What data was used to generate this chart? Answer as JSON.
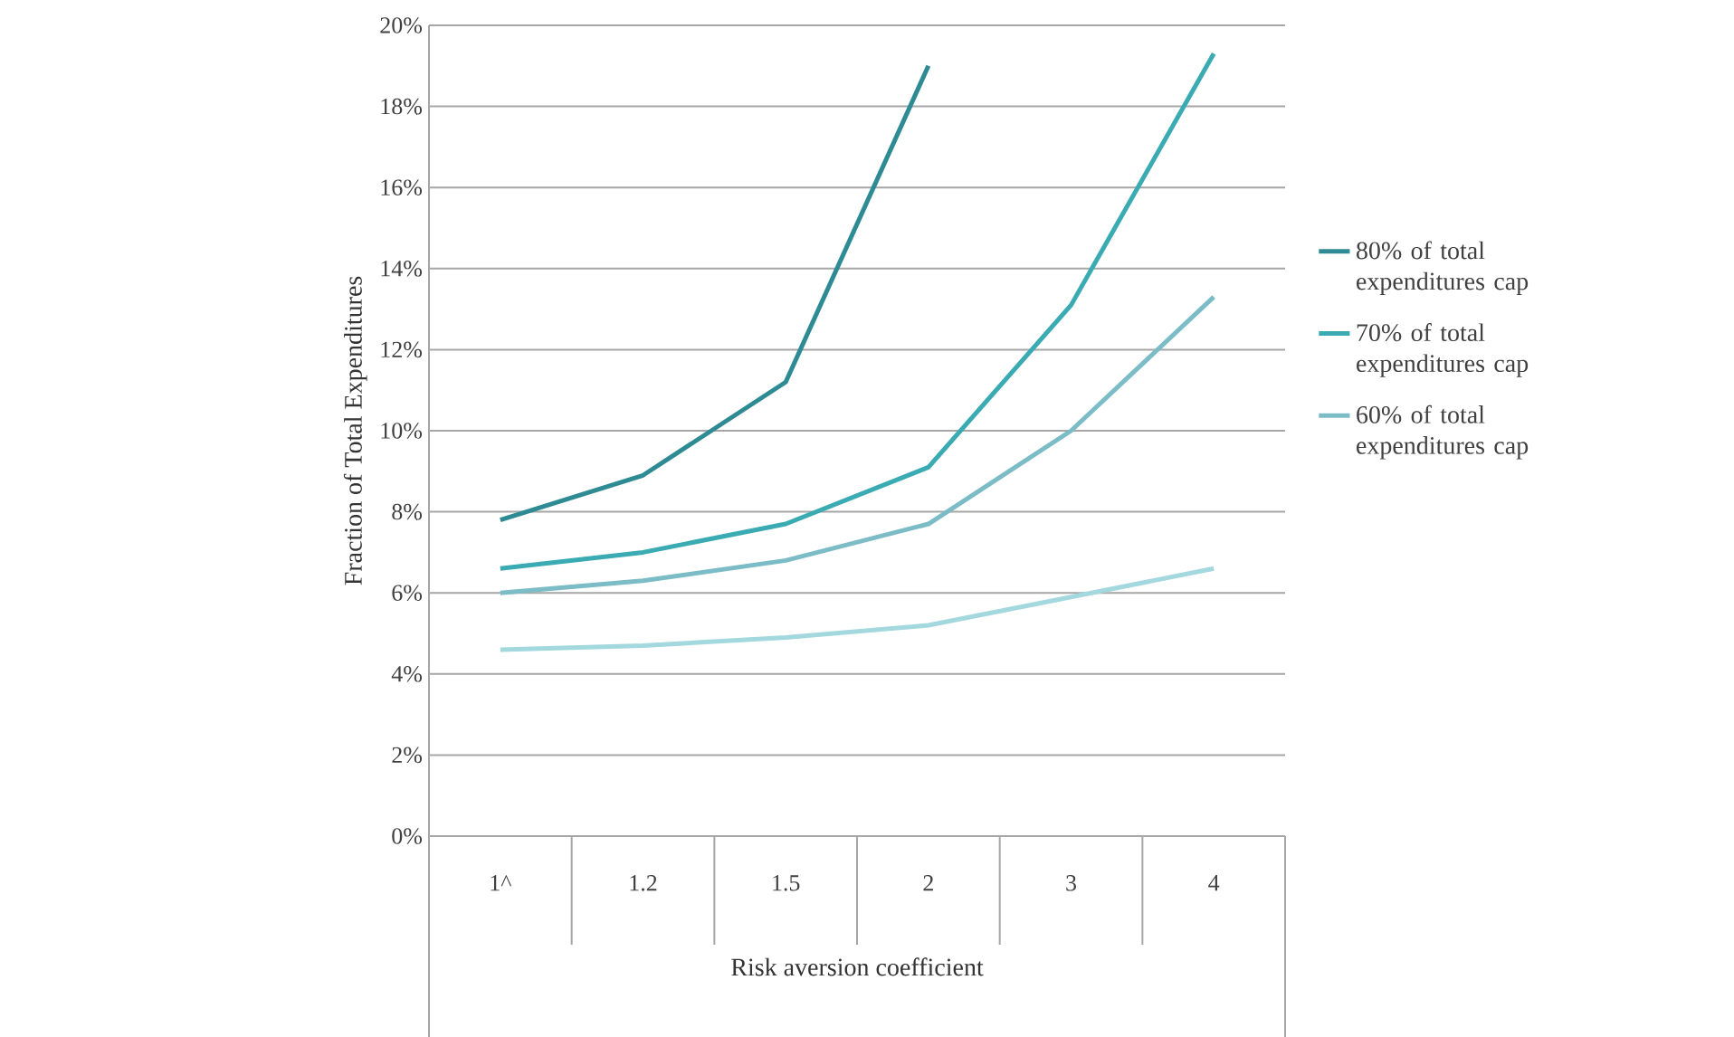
{
  "chart_data": {
    "type": "line",
    "xlabel": "Risk aversion coefficient",
    "ylabel": "Fraction of Total Expenditures",
    "categories": [
      "1^",
      "1.2",
      "1.5",
      "2",
      "3",
      "4"
    ],
    "series": [
      {
        "name": "80% of total expenditures cap",
        "color": "#2e8b94",
        "values": [
          7.8,
          8.9,
          11.2,
          19.0,
          null,
          null
        ]
      },
      {
        "name": "70% of total expenditures cap",
        "color": "#3aaab3",
        "values": [
          6.6,
          7.0,
          7.7,
          9.1,
          13.1,
          19.3
        ]
      },
      {
        "name": "60% of total expenditures cap",
        "color": "#7bbcc6",
        "values": [
          6.0,
          6.3,
          6.8,
          7.7,
          10.0,
          13.3
        ]
      },
      {
        "color": "#a3d8de",
        "values": [
          4.6,
          4.7,
          4.9,
          5.2,
          5.9,
          6.6
        ]
      }
    ],
    "ylim": [
      0,
      20
    ],
    "yticks": [
      {
        "value": 0,
        "label": "0%"
      },
      {
        "value": 2,
        "label": "2%"
      },
      {
        "value": 4,
        "label": "4%"
      },
      {
        "value": 6,
        "label": "6%"
      },
      {
        "value": 8,
        "label": "8%"
      },
      {
        "value": 10,
        "label": "10%"
      },
      {
        "value": 12,
        "label": "12%"
      },
      {
        "value": 14,
        "label": "14%"
      },
      {
        "value": 16,
        "label": "16%"
      },
      {
        "value": 18,
        "label": "18%"
      },
      {
        "value": 20,
        "label": "20%"
      }
    ],
    "grid": "y",
    "legend": "right",
    "marker": "none",
    "line_style": "solid"
  }
}
